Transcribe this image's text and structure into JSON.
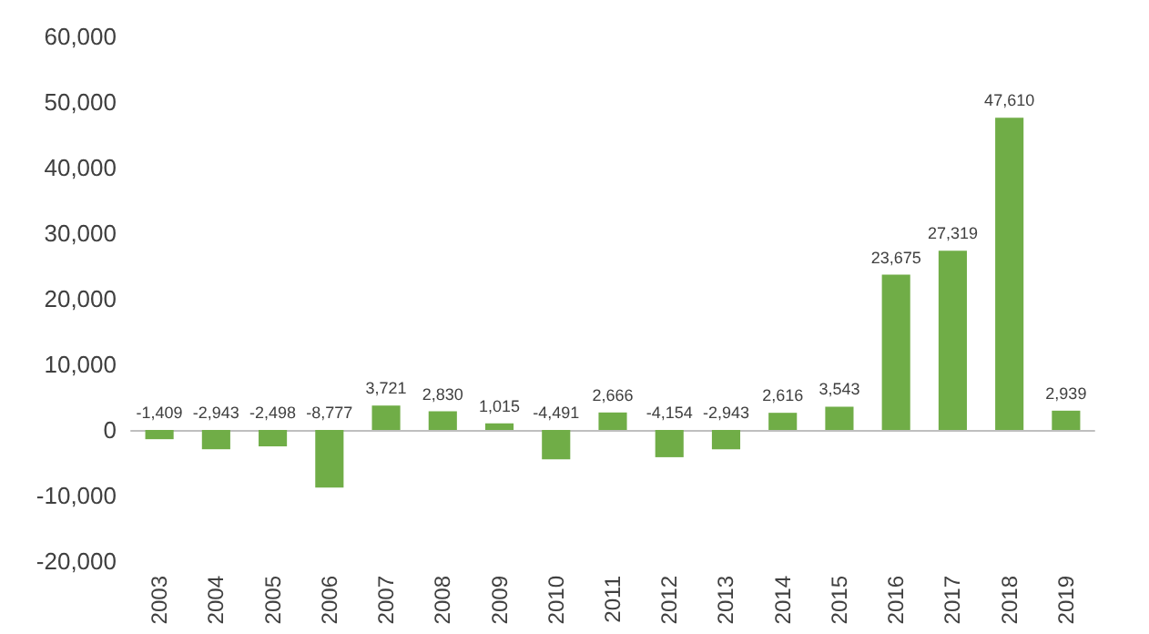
{
  "chart_data": {
    "type": "bar",
    "categories": [
      "2003",
      "2004",
      "2005",
      "2006",
      "2007",
      "2008",
      "2009",
      "2010",
      "2011",
      "2012",
      "2013",
      "2014",
      "2015",
      "2016",
      "2017",
      "2018",
      "2019"
    ],
    "values": [
      -1409,
      -2943,
      -2498,
      -8777,
      3721,
      2830,
      1015,
      -4491,
      2666,
      -4154,
      -2943,
      2616,
      3543,
      23675,
      27319,
      47610,
      2939
    ],
    "value_labels": [
      "-1,409",
      "-2,943",
      "-2,498",
      "-8,777",
      "3,721",
      "2,830",
      "1,015",
      "-4,491",
      "2,666",
      "-4,154",
      "-2,943",
      "2,616",
      "3,543",
      "23,675",
      "27,319",
      "47,610",
      "2,939"
    ],
    "color": "#70ad47",
    "ylim": [
      -20000,
      60000
    ],
    "yticks": [
      {
        "value": -20000,
        "label": "-20,000"
      },
      {
        "value": -10000,
        "label": "-10,000"
      },
      {
        "value": 0,
        "label": "0"
      },
      {
        "value": 10000,
        "label": "10,000"
      },
      {
        "value": 20000,
        "label": "20,000"
      },
      {
        "value": 30000,
        "label": "30,000"
      },
      {
        "value": 40000,
        "label": "40,000"
      },
      {
        "value": 50000,
        "label": "50,000"
      },
      {
        "value": 60000,
        "label": "60,000"
      }
    ]
  }
}
